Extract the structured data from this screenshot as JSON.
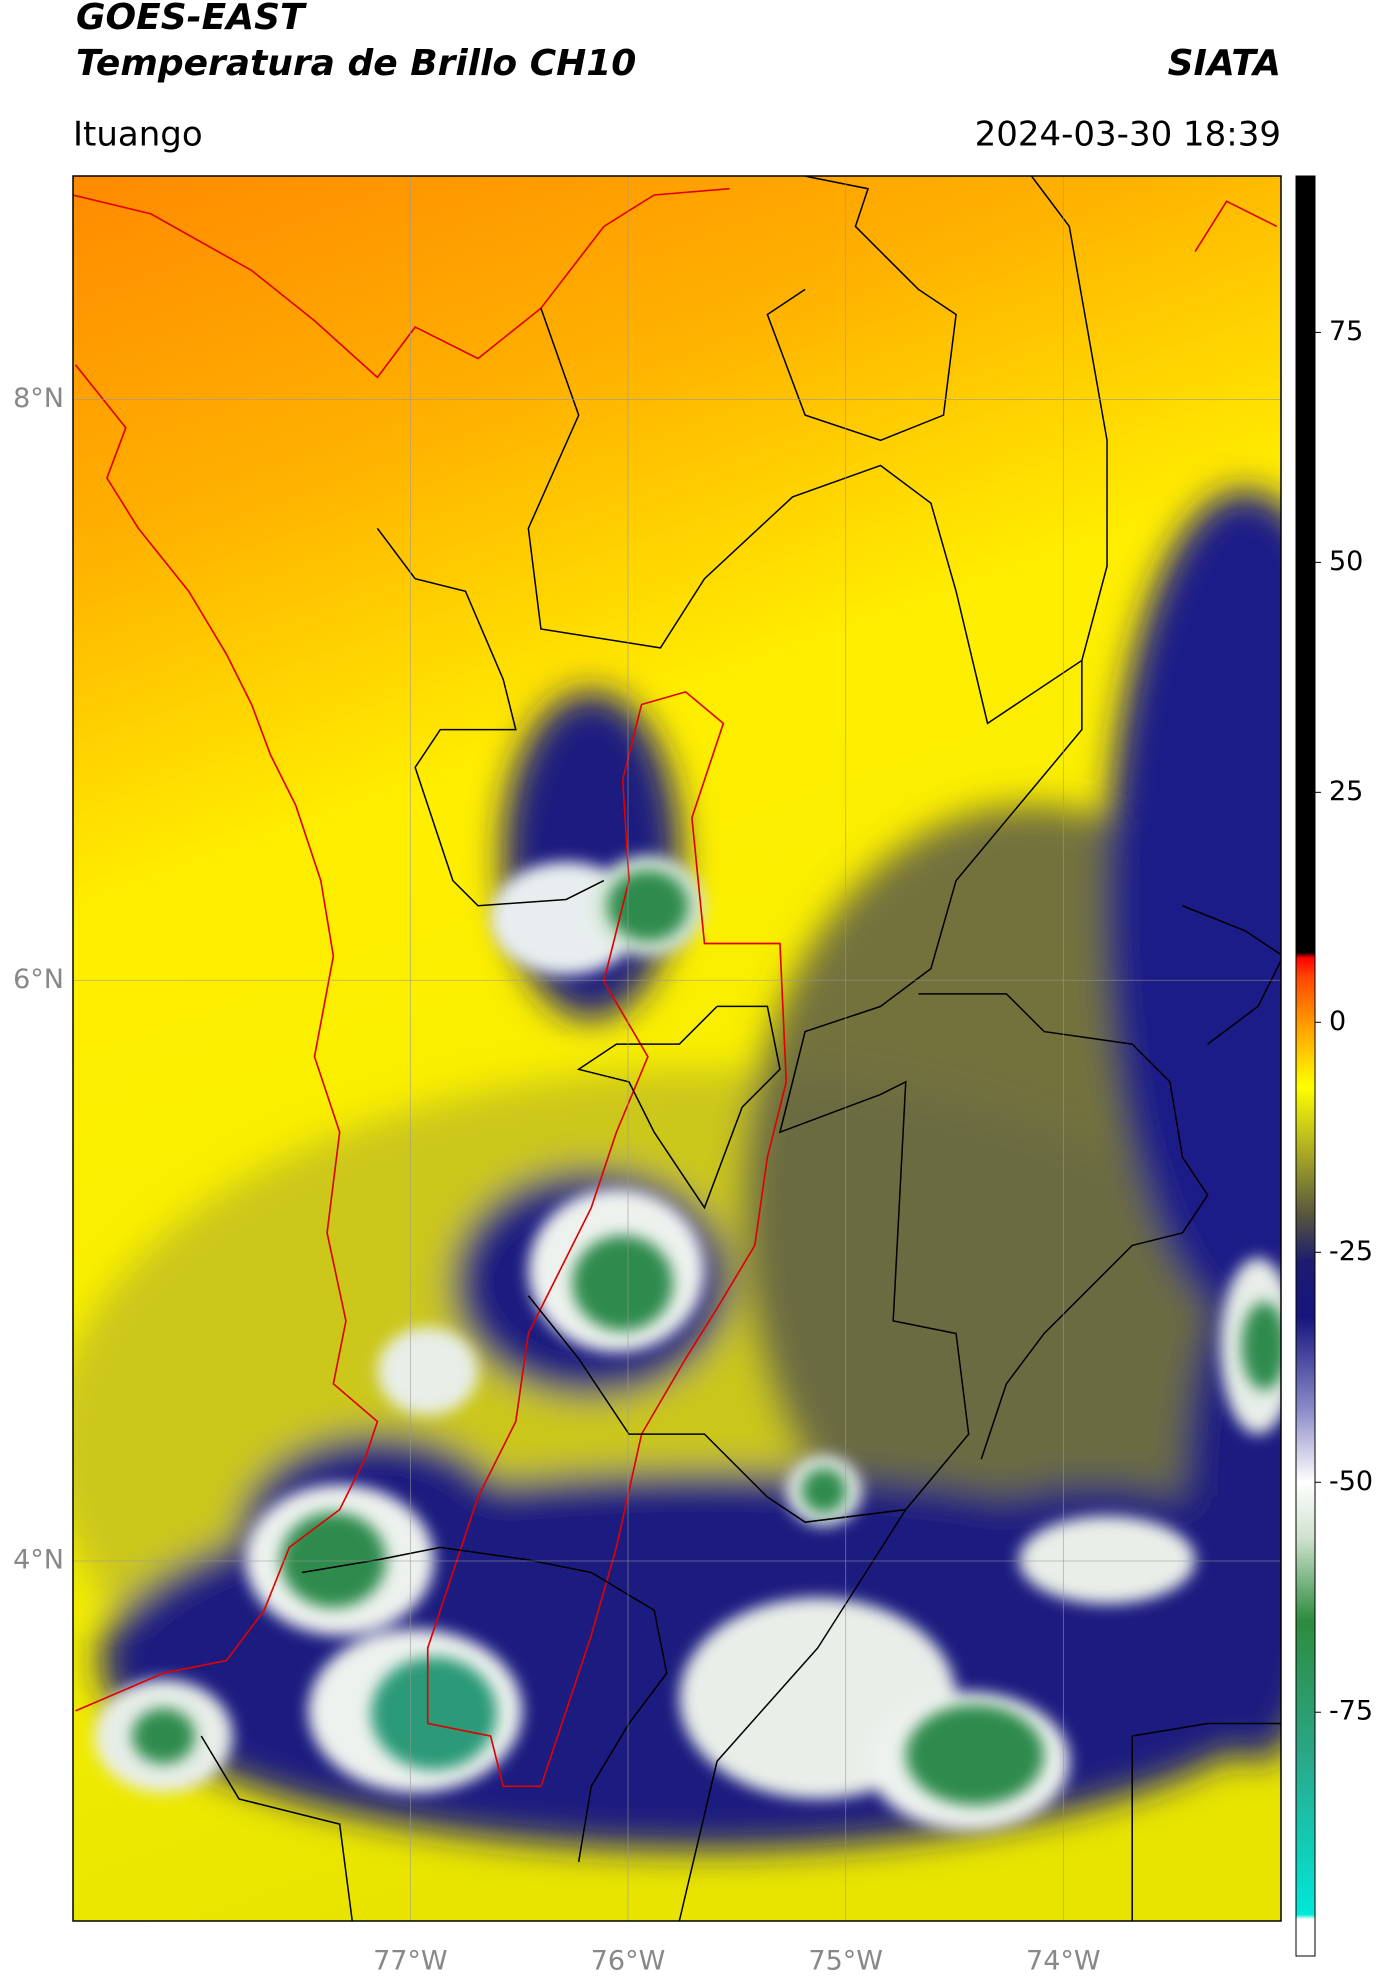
{
  "chart_data": {
    "type": "map",
    "title": "GOES-EAST",
    "subtitle": "Temperatura de Brillo CH10",
    "source": "SIATA",
    "location": "Ituango",
    "timestamp": "2024-03-30 18:39",
    "xlim": [
      -78.55,
      -73.0
    ],
    "ylim": [
      2.76,
      8.77
    ],
    "xticks": [
      {
        "value": -77,
        "label": "77°W"
      },
      {
        "value": -76,
        "label": "76°W"
      },
      {
        "value": -75,
        "label": "75°W"
      },
      {
        "value": -74,
        "label": "74°W"
      }
    ],
    "yticks": [
      {
        "value": 8,
        "label": "8°N"
      },
      {
        "value": 6,
        "label": "6°N"
      },
      {
        "value": 4,
        "label": "4°N"
      }
    ],
    "grid": true,
    "colorbar": {
      "lim": [
        -101.5,
        92
      ],
      "ticks": [
        75,
        50,
        25,
        0,
        -25,
        -50,
        -75
      ],
      "stops": [
        [
          -101.5,
          "#ffffff"
        ],
        [
          -97.5,
          "#ffffff"
        ],
        [
          -97,
          "#00e8d8"
        ],
        [
          -80,
          "#2aa88a"
        ],
        [
          -65,
          "#2e8b3e"
        ],
        [
          -56,
          "#cfe3cf"
        ],
        [
          -50,
          "#ffffff"
        ],
        [
          -42,
          "#8a8ac8"
        ],
        [
          -32,
          "#15157f"
        ],
        [
          -26,
          "#1c1c70"
        ],
        [
          -21,
          "#55553e"
        ],
        [
          -13,
          "#b8b820"
        ],
        [
          -7,
          "#ffff00"
        ],
        [
          0,
          "#ff9900"
        ],
        [
          5,
          "#ff4400"
        ],
        [
          7,
          "#ff0000"
        ],
        [
          7.6,
          "#000000"
        ],
        [
          92,
          "#000000"
        ]
      ]
    }
  }
}
